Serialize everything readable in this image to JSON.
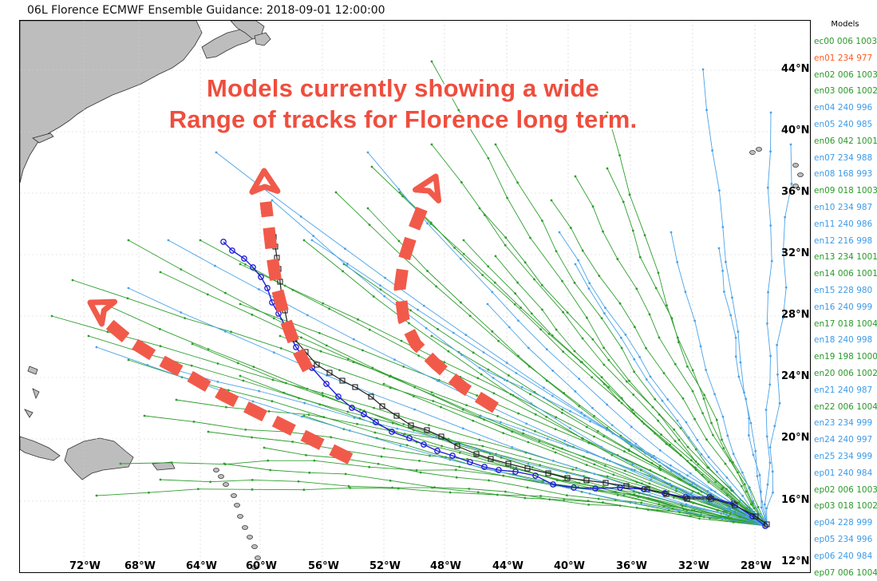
{
  "title": "06L Florence ECMWF Ensemble Guidance: 2018-09-01 12:00:00",
  "annotation": {
    "line1": "Models currently showing a wide",
    "line2": "Range of tracks for Florence long term."
  },
  "latitude_labels": [
    "44°N",
    "40°N",
    "36°N",
    "32°N",
    "28°N",
    "24°N",
    "20°N",
    "16°N",
    "12°N"
  ],
  "longitude_labels": [
    "72°W",
    "68°W",
    "64°W",
    "60°W",
    "56°W",
    "52°W",
    "48°W",
    "44°W",
    "40°W",
    "36°W",
    "32°W",
    "28°W"
  ],
  "colors": {
    "land": "#bdbdbd",
    "ensemble_green": "#2e9e2e",
    "ensemble_blue": "#4aa3e8",
    "operational_track": "#1f1fd6",
    "control_track": "#222222",
    "alert_red": "#f15a4a",
    "legend_green": "#2a9a2a",
    "legend_blue": "#3d9be9",
    "legend_red": "#ff5a1f"
  },
  "legend": {
    "title": "Models",
    "items": [
      {
        "label": "ec00 006 1003",
        "color": "green"
      },
      {
        "label": "en01 234 977",
        "color": "red"
      },
      {
        "label": "en02 006 1003",
        "color": "green"
      },
      {
        "label": "en03 006 1002",
        "color": "green"
      },
      {
        "label": "en04 240 996",
        "color": "blue"
      },
      {
        "label": "en05 240 985",
        "color": "blue"
      },
      {
        "label": "en06 042 1001",
        "color": "green"
      },
      {
        "label": "en07 234 988",
        "color": "blue"
      },
      {
        "label": "en08 168 993",
        "color": "blue"
      },
      {
        "label": "en09 018 1003",
        "color": "green"
      },
      {
        "label": "en10 234 987",
        "color": "blue"
      },
      {
        "label": "en11 240 986",
        "color": "blue"
      },
      {
        "label": "en12 216 998",
        "color": "blue"
      },
      {
        "label": "en13 234 1001",
        "color": "green"
      },
      {
        "label": "en14 006 1001",
        "color": "green"
      },
      {
        "label": "en15 228 980",
        "color": "blue"
      },
      {
        "label": "en16 240 999",
        "color": "blue"
      },
      {
        "label": "en17 018 1004",
        "color": "green"
      },
      {
        "label": "en18 240 998",
        "color": "blue"
      },
      {
        "label": "en19 198 1000",
        "color": "green"
      },
      {
        "label": "en20 006 1002",
        "color": "green"
      },
      {
        "label": "en21 240 987",
        "color": "blue"
      },
      {
        "label": "en22 006 1004",
        "color": "green"
      },
      {
        "label": "en23 234 999",
        "color": "blue"
      },
      {
        "label": "en24 240 997",
        "color": "blue"
      },
      {
        "label": "en25 234 999",
        "color": "blue"
      },
      {
        "label": "ep01 240 984",
        "color": "blue"
      },
      {
        "label": "ep02 006 1003",
        "color": "green"
      },
      {
        "label": "ep03 018 1002",
        "color": "green"
      },
      {
        "label": "ep04 228 999",
        "color": "blue"
      },
      {
        "label": "ep05 234 996",
        "color": "blue"
      },
      {
        "label": "ep06 240 984",
        "color": "blue"
      },
      {
        "label": "ep07 006 1004",
        "color": "green"
      }
    ]
  }
}
